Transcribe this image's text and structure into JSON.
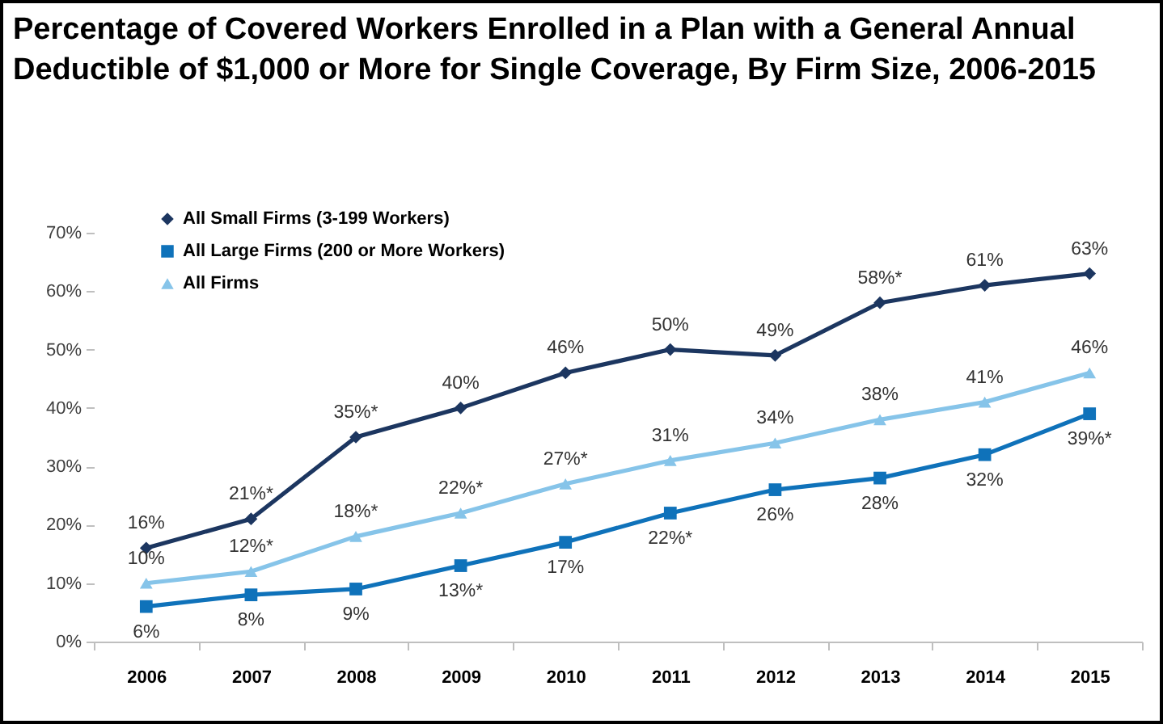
{
  "chart_data": {
    "type": "line",
    "title": "Percentage of Covered Workers Enrolled in a Plan with a General Annual Deductible of $1,000 or More for Single Coverage, By Firm Size, 2006-2015",
    "categories": [
      "2006",
      "2007",
      "2008",
      "2009",
      "2010",
      "2011",
      "2012",
      "2013",
      "2014",
      "2015"
    ],
    "series": [
      {
        "name": "All Small Firms (3-199 Workers)",
        "color": "#1c3660",
        "marker": "diamond",
        "values": [
          16,
          21,
          35,
          40,
          46,
          50,
          49,
          58,
          61,
          63
        ],
        "value_labels": [
          "16%",
          "21%*",
          "35%*",
          "40%",
          "46%",
          "50%",
          "49%",
          "58%*",
          "61%",
          "63%"
        ]
      },
      {
        "name": "All Large Firms (200 or More Workers)",
        "color": "#0f72ba",
        "marker": "square",
        "values": [
          6,
          8,
          9,
          13,
          17,
          22,
          26,
          28,
          32,
          39
        ],
        "value_labels": [
          "6%",
          "8%",
          "9%",
          "13%*",
          "17%",
          "22%*",
          "26%",
          "28%",
          "32%",
          "39%*"
        ]
      },
      {
        "name": "All Firms",
        "color": "#86c4e9",
        "marker": "triangle",
        "values": [
          10,
          12,
          18,
          22,
          27,
          31,
          34,
          38,
          41,
          46
        ],
        "value_labels": [
          "10%",
          "12%*",
          "18%*",
          "22%*",
          "27%*",
          "31%",
          "34%",
          "38%",
          "41%",
          "46%"
        ]
      }
    ],
    "ylim": [
      0,
      70
    ],
    "yticks": [
      {
        "value": 0,
        "label": "0%"
      },
      {
        "value": 10,
        "label": "10%"
      },
      {
        "value": 20,
        "label": "20%"
      },
      {
        "value": 30,
        "label": "30%"
      },
      {
        "value": 40,
        "label": "40%"
      },
      {
        "value": 50,
        "label": "50%"
      },
      {
        "value": 60,
        "label": "60%"
      },
      {
        "value": 70,
        "label": "70%"
      }
    ],
    "legend": "top left"
  }
}
